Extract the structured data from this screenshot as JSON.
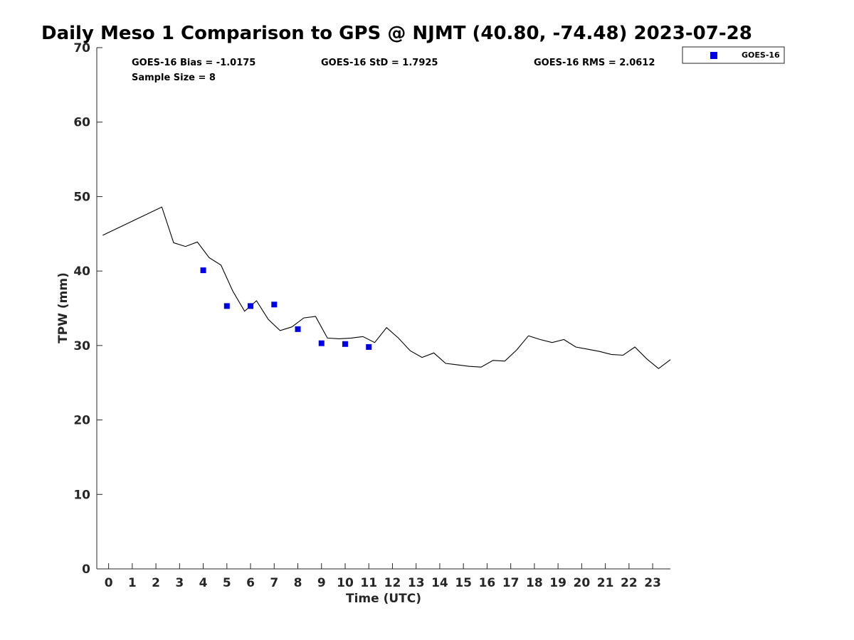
{
  "chart_data": {
    "type": "scatter",
    "title": "Daily Meso 1 Comparison to GPS @ NJMT (40.80, -74.48) 2023-07-28",
    "xlabel": "Time (UTC)",
    "ylabel": "TPW (mm)",
    "xlim": [
      -0.5,
      23.75
    ],
    "ylim": [
      0,
      70
    ],
    "x_ticks": [
      "0",
      "1",
      "2",
      "3",
      "4",
      "5",
      "6",
      "7",
      "8",
      "9",
      "10",
      "11",
      "12",
      "13",
      "14",
      "15",
      "16",
      "17",
      "18",
      "19",
      "20",
      "21",
      "22",
      "23"
    ],
    "y_ticks": [
      "0",
      "10",
      "20",
      "30",
      "40",
      "50",
      "60",
      "70"
    ],
    "grid": false,
    "legend": {
      "position": "top-right",
      "entries": [
        "GOES-16"
      ]
    },
    "stats": {
      "bias": "GOES-16 Bias = -1.0175",
      "std": "GOES-16 StD = 1.7925",
      "rms": "GOES-16 RMS = 2.0612",
      "sample": "Sample Size = 8"
    },
    "series": [
      {
        "name": "GOES-16",
        "kind": "scatter",
        "color": "#0000e6",
        "x": [
          4,
          5,
          6,
          7,
          8,
          9,
          10,
          11
        ],
        "y": [
          40.1,
          35.3,
          35.3,
          35.5,
          32.2,
          30.3,
          30.2,
          29.8
        ]
      },
      {
        "kind": "line",
        "color": "#000000",
        "x": [
          -0.25,
          2.25,
          2.75,
          3.25,
          3.75,
          4.25,
          4.75,
          5.25,
          5.75,
          6.25,
          6.75,
          7.25,
          7.75,
          8.25,
          8.75,
          9.25,
          9.75,
          10.25,
          10.75,
          11.25,
          11.75,
          12.25,
          12.75,
          13.25,
          13.75,
          14.25,
          14.75,
          15.25,
          15.75,
          16.25,
          16.75,
          17.25,
          17.75,
          18.25,
          18.75,
          19.25,
          19.75,
          20.25,
          20.75,
          21.25,
          21.75,
          22.25,
          22.75,
          23.25,
          23.75
        ],
        "y": [
          44.8,
          48.6,
          43.8,
          43.3,
          43.9,
          41.8,
          40.8,
          37.3,
          34.6,
          36.0,
          33.5,
          32.0,
          32.5,
          33.7,
          33.9,
          31.0,
          30.9,
          31.0,
          31.2,
          30.4,
          32.4,
          31.0,
          29.3,
          28.4,
          29.0,
          27.6,
          27.4,
          27.2,
          27.1,
          28.0,
          27.9,
          29.4,
          31.3,
          30.8,
          30.4,
          30.8,
          29.8,
          29.5,
          29.2,
          28.8,
          28.7,
          29.8,
          28.2,
          26.9,
          28.1
        ]
      }
    ]
  }
}
